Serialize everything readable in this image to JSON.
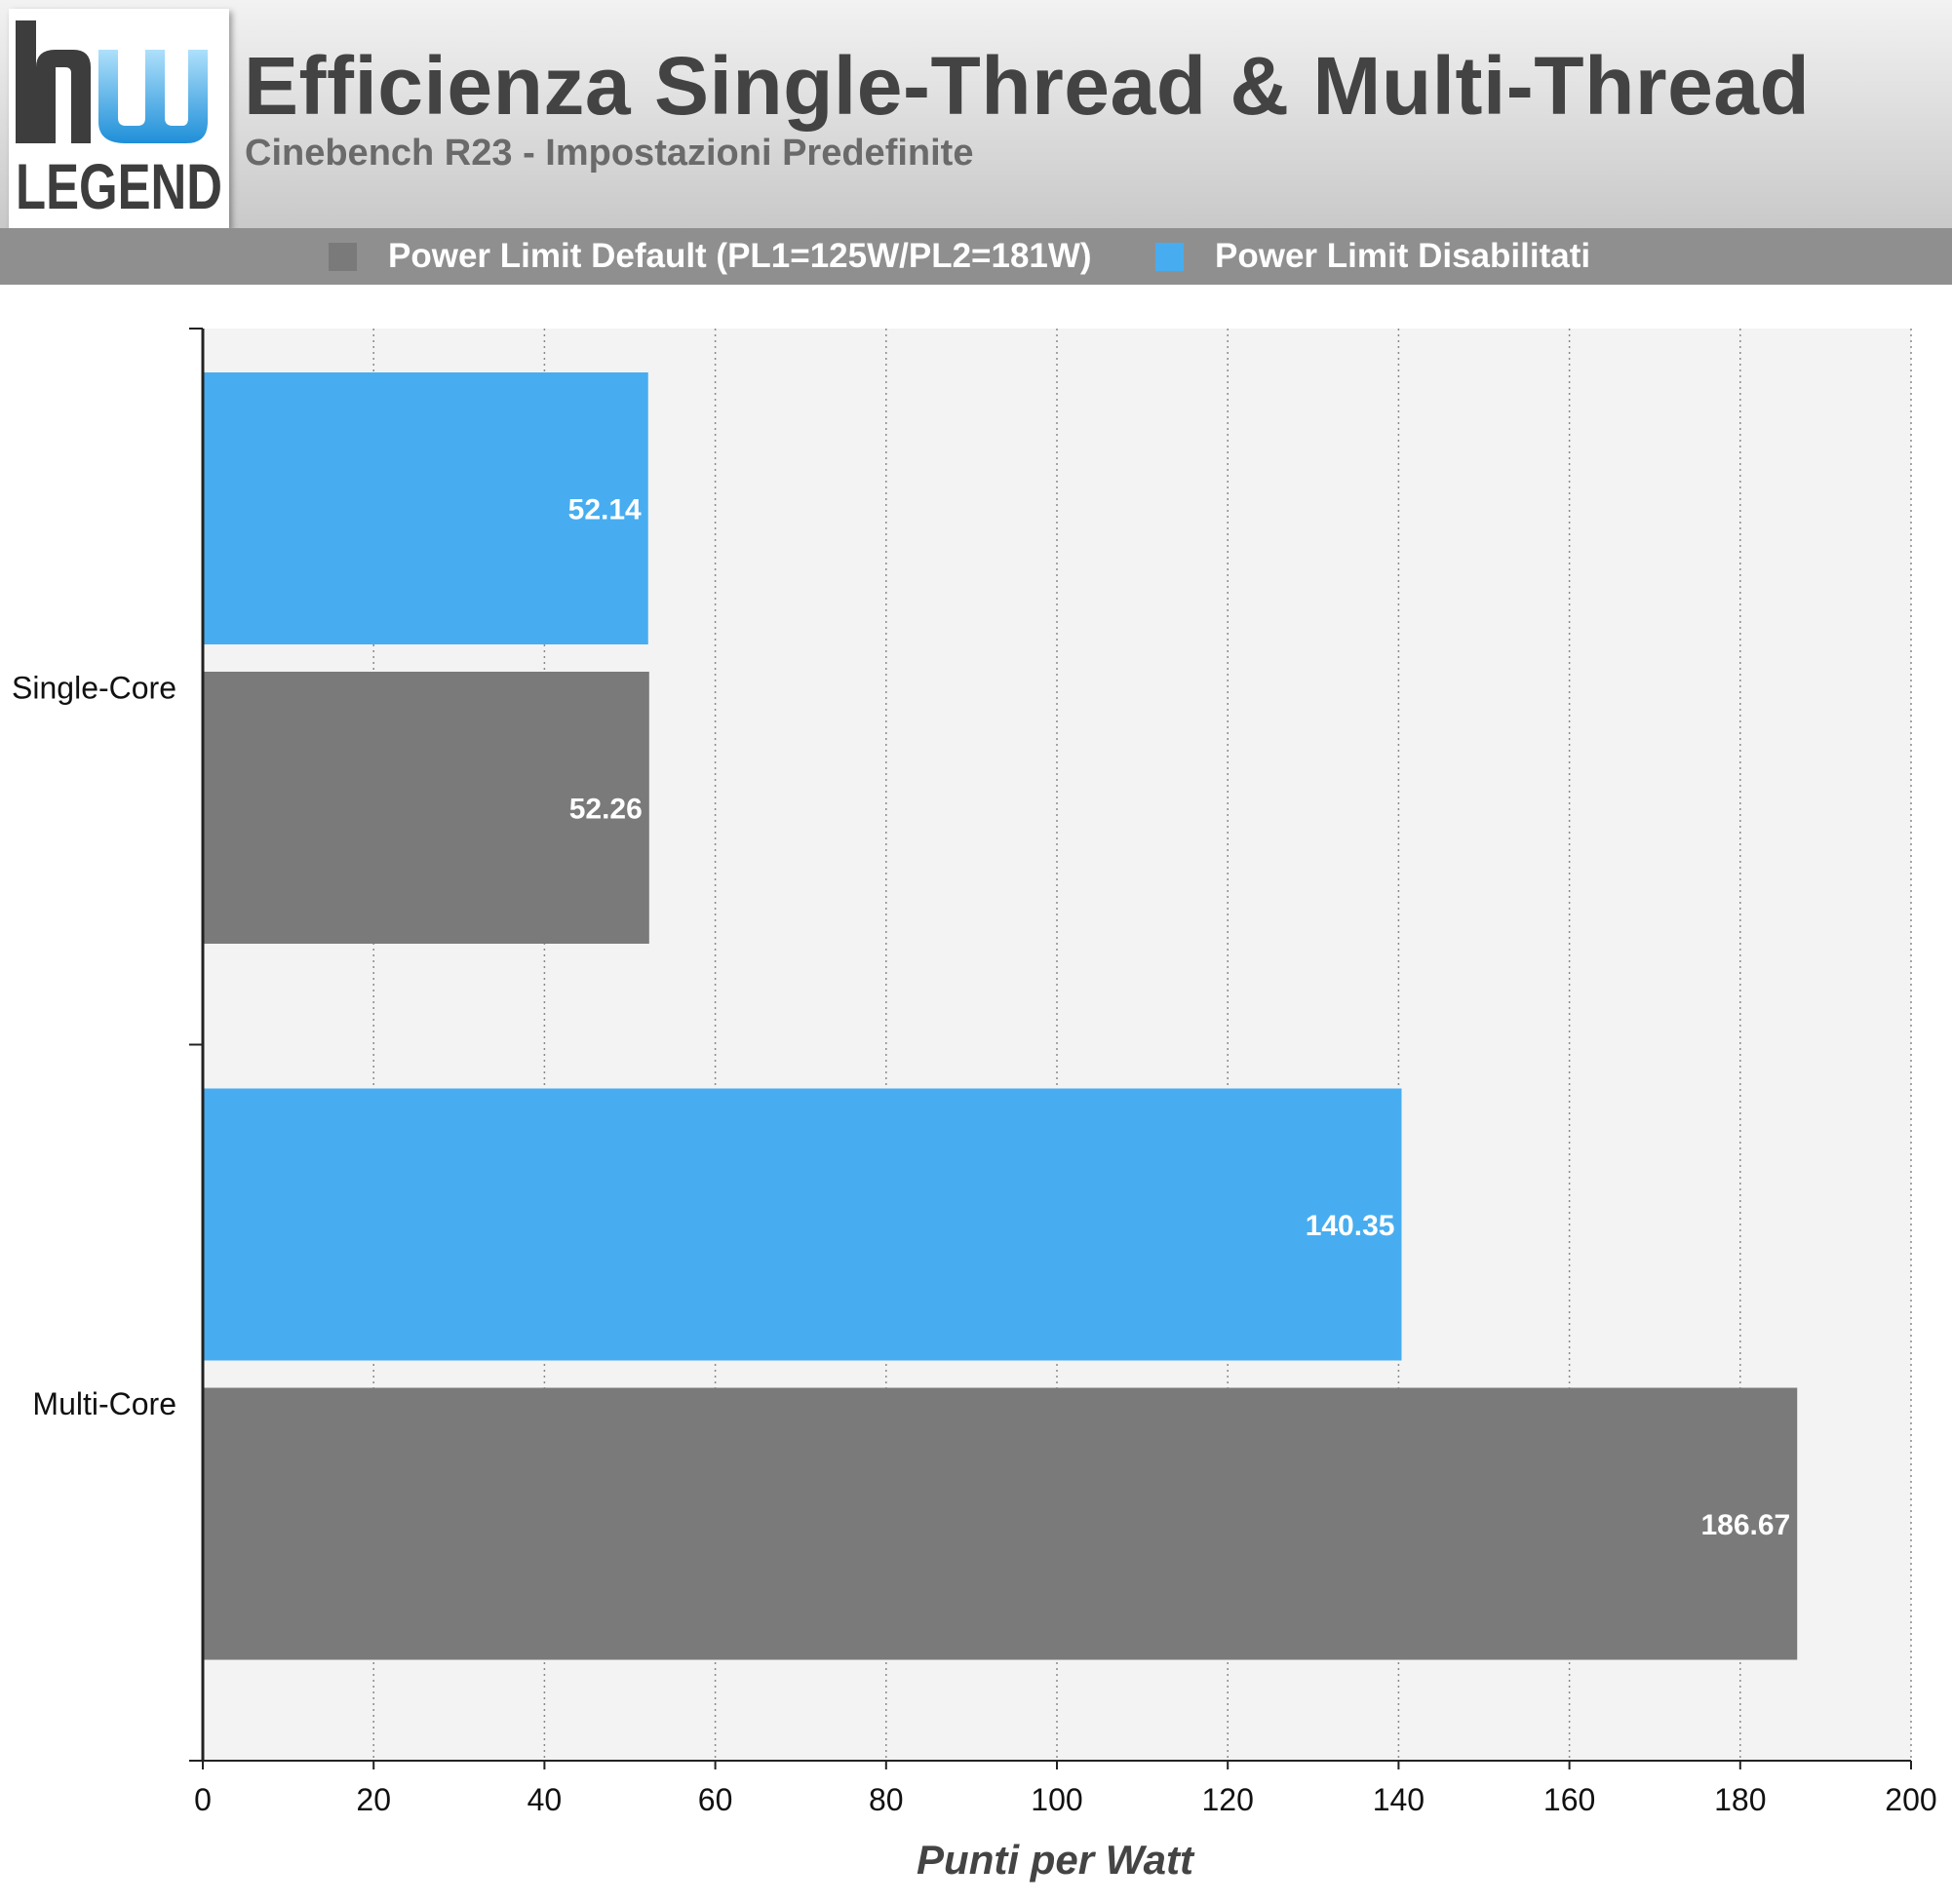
{
  "header": {
    "title": "Efficienza Single-Thread & Multi-Thread",
    "subtitle": "Cinebench R23 - Impostazioni Predefinite",
    "logo_text": "LEGEND"
  },
  "legend": [
    {
      "label": "Power Limit Default (PL1=125W/PL2=181W)",
      "color": "#7a7a7a"
    },
    {
      "label": "Power Limit Disabilitati",
      "color": "#47adf0"
    }
  ],
  "chart_data": {
    "type": "bar",
    "orientation": "horizontal",
    "categories": [
      "Single-Core",
      "Multi-Core"
    ],
    "series": [
      {
        "name": "Power Limit Disabilitati",
        "color": "#47adf0",
        "values": [
          52.14,
          140.35
        ],
        "labels": [
          "52.14",
          "140.35"
        ]
      },
      {
        "name": "Power Limit Default (PL1=125W/PL2=181W)",
        "color": "#7a7a7a",
        "values": [
          52.26,
          186.67
        ],
        "labels": [
          "52.26",
          "186.67"
        ]
      }
    ],
    "xlabel": "Punti per Watt",
    "xlim": [
      0,
      200
    ],
    "xticks": [
      0,
      20,
      40,
      60,
      80,
      100,
      120,
      140,
      160,
      180,
      200
    ],
    "grid": "vertical dotted",
    "legend_position": "top"
  }
}
